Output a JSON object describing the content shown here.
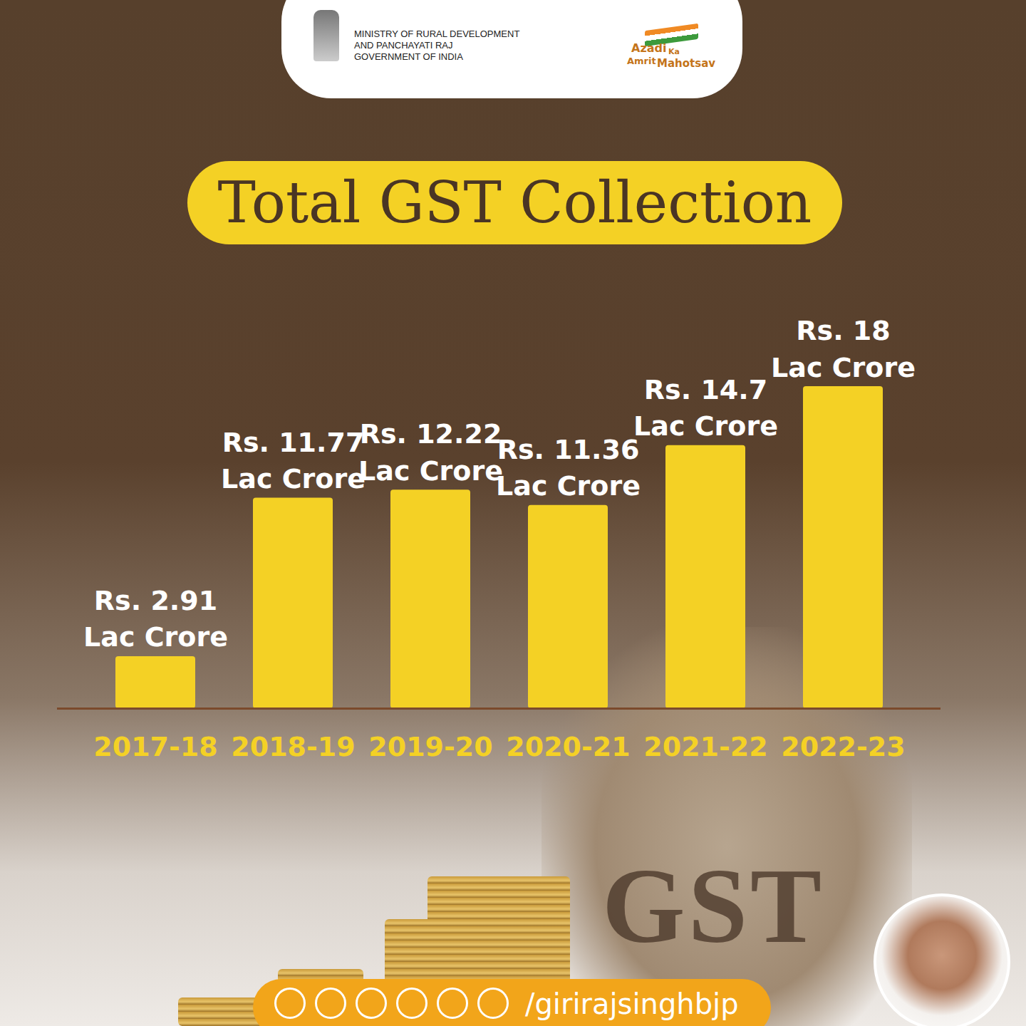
{
  "chart_data": {
    "type": "bar",
    "title": "Total GST Collection",
    "categories": [
      "2017-18",
      "2018-19",
      "2019-20",
      "2020-21",
      "2021-22",
      "2022-23"
    ],
    "values": [
      2.91,
      11.77,
      12.22,
      11.36,
      14.7,
      18
    ],
    "value_labels": [
      "Rs. 2.91\nLac Crore",
      "Rs. 11.77\nLac Crore",
      "Rs. 12.22\nLac Crore",
      "Rs. 11.36\nLac Crore",
      "Rs. 14.7\nLac Crore",
      "Rs. 18\nLac Crore"
    ],
    "color": "#f4d125",
    "ylim": [
      0,
      18
    ],
    "yticks": [],
    "tick_labels": "x",
    "data_labels": true,
    "grid": false,
    "annotations": [
      "MINISTRY OF RURAL DEVELOPMENT",
      "AND PANCHAYATI RAJ",
      "GOVERNMENT OF INDIA",
      "Azadi",
      "Ka",
      "Amrit",
      "Mahotsav",
      "GST",
      "/girirajsinghbjp"
    ]
  }
}
